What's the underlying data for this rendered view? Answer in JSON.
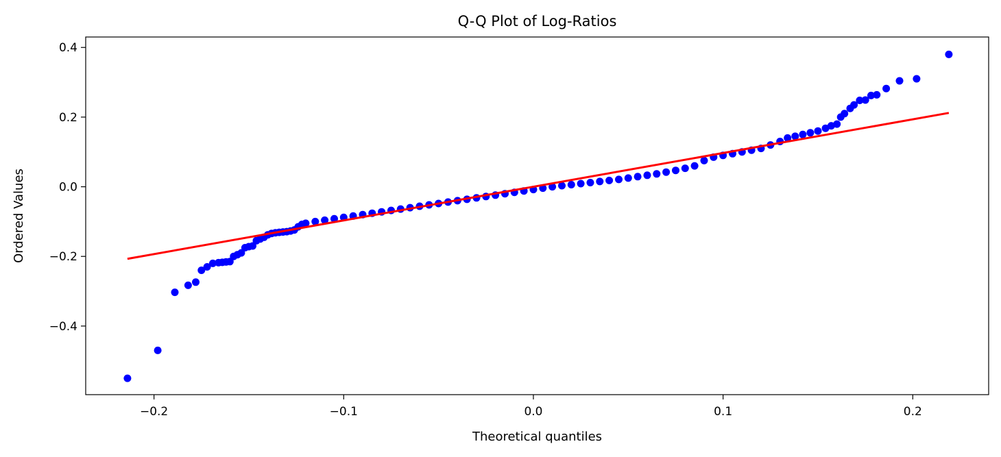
{
  "chart_data": {
    "type": "scatter",
    "title": "Q-Q Plot of Log-Ratios",
    "xlabel": "Theoretical quantiles",
    "ylabel": "Ordered Values",
    "xlim": [
      -0.236,
      0.24
    ],
    "ylim": [
      -0.597,
      0.43
    ],
    "xticks": [
      -0.2,
      -0.1,
      0.0,
      0.1,
      0.2
    ],
    "xtick_labels": [
      "−0.2",
      "−0.1",
      "0.0",
      "0.1",
      "0.2"
    ],
    "yticks": [
      -0.4,
      -0.2,
      0.0,
      0.2,
      0.4
    ],
    "ytick_labels": [
      "−0.4",
      "−0.2",
      "0.0",
      "0.2",
      "0.4"
    ],
    "grid": false,
    "colors": {
      "points": "#0000ff",
      "fit_line": "#ff0000"
    },
    "series": [
      {
        "kind": "points",
        "x": [
          -0.214,
          -0.198,
          -0.189,
          -0.182,
          -0.178,
          -0.175,
          -0.172,
          -0.169,
          -0.166,
          -0.164,
          -0.162,
          -0.16,
          -0.158,
          -0.156,
          -0.154,
          -0.152,
          -0.15,
          -0.148,
          -0.146,
          -0.144,
          -0.142,
          -0.14,
          -0.138,
          -0.136,
          -0.134,
          -0.132,
          -0.13,
          -0.128,
          -0.126,
          -0.124,
          -0.122,
          -0.12,
          -0.115,
          -0.11,
          -0.105,
          -0.1,
          -0.095,
          -0.09,
          -0.085,
          -0.08,
          -0.075,
          -0.07,
          -0.065,
          -0.06,
          -0.055,
          -0.05,
          -0.045,
          -0.04,
          -0.035,
          -0.03,
          -0.025,
          -0.02,
          -0.015,
          -0.01,
          -0.005,
          0.0,
          0.005,
          0.01,
          0.015,
          0.02,
          0.025,
          0.03,
          0.035,
          0.04,
          0.045,
          0.05,
          0.055,
          0.06,
          0.065,
          0.07,
          0.075,
          0.08,
          0.085,
          0.09,
          0.095,
          0.1,
          0.105,
          0.11,
          0.115,
          0.12,
          0.125,
          0.13,
          0.134,
          0.138,
          0.142,
          0.146,
          0.15,
          0.154,
          0.157,
          0.16,
          0.162,
          0.164,
          0.167,
          0.169,
          0.172,
          0.175,
          0.178,
          0.181,
          0.186,
          0.193,
          0.202,
          0.219
        ],
        "y": [
          -0.55,
          -0.47,
          -0.303,
          -0.283,
          -0.274,
          -0.24,
          -0.23,
          -0.22,
          -0.218,
          -0.217,
          -0.216,
          -0.215,
          -0.2,
          -0.195,
          -0.19,
          -0.175,
          -0.172,
          -0.17,
          -0.155,
          -0.15,
          -0.145,
          -0.138,
          -0.134,
          -0.132,
          -0.131,
          -0.13,
          -0.129,
          -0.127,
          -0.124,
          -0.115,
          -0.108,
          -0.105,
          -0.1,
          -0.096,
          -0.092,
          -0.088,
          -0.084,
          -0.08,
          -0.076,
          -0.072,
          -0.068,
          -0.064,
          -0.06,
          -0.056,
          -0.052,
          -0.048,
          -0.044,
          -0.04,
          -0.036,
          -0.032,
          -0.028,
          -0.024,
          -0.02,
          -0.016,
          -0.012,
          -0.008,
          -0.004,
          0.0,
          0.003,
          0.006,
          0.009,
          0.012,
          0.015,
          0.018,
          0.021,
          0.025,
          0.029,
          0.033,
          0.037,
          0.042,
          0.047,
          0.053,
          0.06,
          0.075,
          0.085,
          0.09,
          0.095,
          0.1,
          0.105,
          0.11,
          0.12,
          0.13,
          0.14,
          0.145,
          0.15,
          0.155,
          0.16,
          0.168,
          0.175,
          0.18,
          0.2,
          0.21,
          0.225,
          0.235,
          0.248,
          0.249,
          0.262,
          0.264,
          0.282,
          0.304,
          0.31,
          0.38
        ]
      },
      {
        "kind": "fit_line",
        "x": [
          -0.214,
          0.219
        ],
        "y": [
          -0.207,
          0.212
        ]
      }
    ]
  }
}
